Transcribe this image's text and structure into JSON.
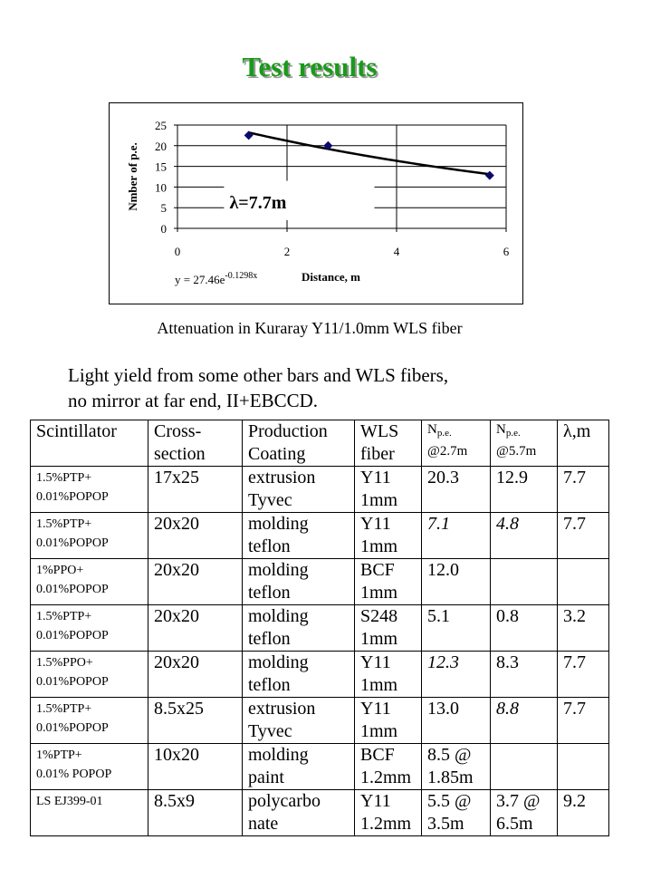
{
  "title": "Test results",
  "chart_data": {
    "type": "scatter",
    "xlabel": "Distance, m",
    "ylabel": "Nmber of p.e.",
    "xlim": [
      0,
      6
    ],
    "ylim": [
      0,
      25
    ],
    "xticks": [
      "0",
      "2",
      "4",
      "6"
    ],
    "yticks": [
      "0",
      "5",
      "10",
      "15",
      "20",
      "25"
    ],
    "points": [
      {
        "x": 1.3,
        "y": 22.5
      },
      {
        "x": 2.75,
        "y": 20.0
      },
      {
        "x": 5.7,
        "y": 12.8
      }
    ],
    "fit": {
      "a": 27.46,
      "b": -0.1298,
      "x_range": [
        1.3,
        5.7
      ]
    },
    "fit_label": "y = 27.46e",
    "fit_exponent": "-0.1298x",
    "annotation": "λ=7.7m",
    "grid": true,
    "marker_color": "#0a0a6e"
  },
  "caption": "Attenuation in Kuraray Y11/1.0mm WLS fiber",
  "intro": [
    "Light yield from some other bars and WLS fibers,",
    "no mirror at far end, II+EBCCD."
  ],
  "table": {
    "headers": [
      {
        "l1": "Scintillator",
        "l2": ""
      },
      {
        "l1": "Cross-",
        "l2": "section"
      },
      {
        "l1": "Production",
        "l2": "Coating"
      },
      {
        "l1": "WLS",
        "l2": "fiber"
      },
      {
        "l1": "N",
        "sub": "p.e.",
        "l2": "@2.7m"
      },
      {
        "l1": "N",
        "sub": "p.e.",
        "l2": "@5.7m"
      },
      {
        "l1": "λ,m",
        "l2": ""
      }
    ],
    "rows": [
      {
        "scint": [
          "1.5%PTP+",
          "0.01%POPOP"
        ],
        "cross": "17x25",
        "coat": [
          "extrusion",
          "Tyvec"
        ],
        "wls": [
          "Y11",
          "1mm"
        ],
        "n27": [
          "20.3",
          ""
        ],
        "n57": [
          "12.9",
          ""
        ],
        "lam": "7.7",
        "i27": false,
        "i57": false
      },
      {
        "scint": [
          "1.5%PTP+",
          "0.01%POPOP"
        ],
        "cross": "20x20",
        "coat": [
          "molding",
          "teflon"
        ],
        "wls": [
          "Y11",
          "1mm"
        ],
        "n27": [
          "7.1",
          ""
        ],
        "n57": [
          "4.8",
          ""
        ],
        "lam": "7.7",
        "i27": true,
        "i57": true
      },
      {
        "scint": [
          "1%PPO+",
          "0.01%POPOP"
        ],
        "cross": "20x20",
        "coat": [
          "molding",
          "teflon"
        ],
        "wls": [
          "BCF",
          "1mm"
        ],
        "n27": [
          "12.0",
          ""
        ],
        "n57": [
          "",
          ""
        ],
        "lam": "",
        "i27": false,
        "i57": false
      },
      {
        "scint": [
          "1.5%PTP+",
          "0.01%POPOP"
        ],
        "cross": "20x20",
        "coat": [
          "molding",
          "teflon"
        ],
        "wls": [
          "S248",
          "1mm"
        ],
        "n27": [
          "5.1",
          ""
        ],
        "n57": [
          "0.8",
          ""
        ],
        "lam": "3.2",
        "i27": false,
        "i57": false
      },
      {
        "scint": [
          "1.5%PPO+",
          "0.01%POPOP"
        ],
        "cross": "20x20",
        "coat": [
          "molding",
          "teflon"
        ],
        "wls": [
          "Y11",
          "1mm"
        ],
        "n27": [
          "12.3",
          ""
        ],
        "n57": [
          "8.3",
          ""
        ],
        "lam": "7.7",
        "i27": true,
        "i57": false
      },
      {
        "scint": [
          "1.5%PTP+",
          "0.01%POPOP"
        ],
        "cross": "8.5x25",
        "coat": [
          "extrusion",
          "Tyvec"
        ],
        "wls": [
          "Y11",
          "1mm"
        ],
        "n27": [
          "13.0",
          ""
        ],
        "n57": [
          "8.8",
          ""
        ],
        "lam": "7.7",
        "i27": false,
        "i57": true
      },
      {
        "scint": [
          "1%PTP+",
          "0.01% POPOP"
        ],
        "cross": "10x20",
        "coat": [
          "molding",
          "paint"
        ],
        "wls": [
          "BCF",
          "1.2mm"
        ],
        "n27": [
          "8.5 @",
          "1.85m"
        ],
        "n57": [
          "",
          ""
        ],
        "lam": "",
        "i27": false,
        "i57": false
      },
      {
        "scint": [
          "LS EJ399-01",
          ""
        ],
        "cross": "8.5x9",
        "coat": [
          "polycarbo",
          "nate"
        ],
        "wls": [
          "Y11",
          "1.2mm"
        ],
        "n27": [
          "5.5 @",
          "3.5m"
        ],
        "n57": [
          "3.7 @",
          "6.5m"
        ],
        "lam": "9.2",
        "i27": false,
        "i57": false
      }
    ]
  }
}
